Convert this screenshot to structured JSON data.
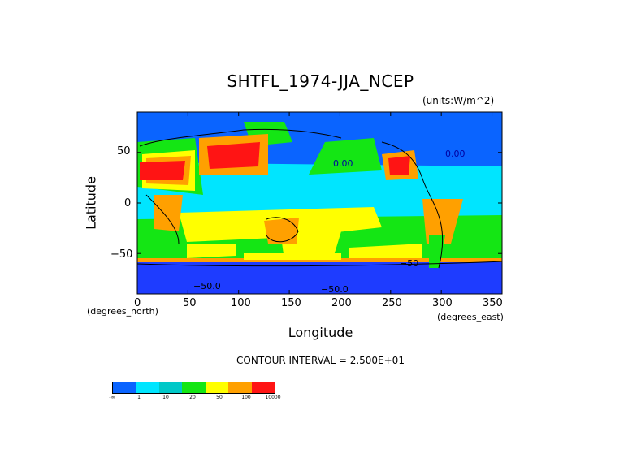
{
  "title": "SHTFL_1974-JJA_NCEP",
  "units": "(units:W/m^2)",
  "xlabel": "Longitude",
  "ylabel": "Latitude",
  "x_unit_label": "(degrees_east)",
  "y_unit_label": "(degrees_north)",
  "contour_interval": "CONTOUR INTERVAL = 2.500E+01",
  "x_ticks": [
    "0",
    "50",
    "100",
    "150",
    "200",
    "250",
    "300",
    "350"
  ],
  "y_ticks": [
    "50",
    "0",
    "−50"
  ],
  "contour_labels": [
    "0.00",
    "0.00",
    "−50",
    "−50.0",
    "−50.0"
  ],
  "legend": {
    "labels": [
      "-∞",
      "1",
      "10",
      "20",
      "50",
      "100",
      "10000"
    ],
    "colors": [
      "#0a64ff",
      "#00e5ff",
      "#00c8c8",
      "#14e614",
      "#ffff00",
      "#ffa000",
      "#ff1414"
    ]
  },
  "colors": {
    "ocean_cold": "#0a64ff",
    "tropical": "#00e5ff",
    "mid": "#14e614",
    "yellow": "#ffff00",
    "orange": "#ffa000",
    "red": "#ff1414",
    "southern_dark": "#1e3cff"
  }
}
